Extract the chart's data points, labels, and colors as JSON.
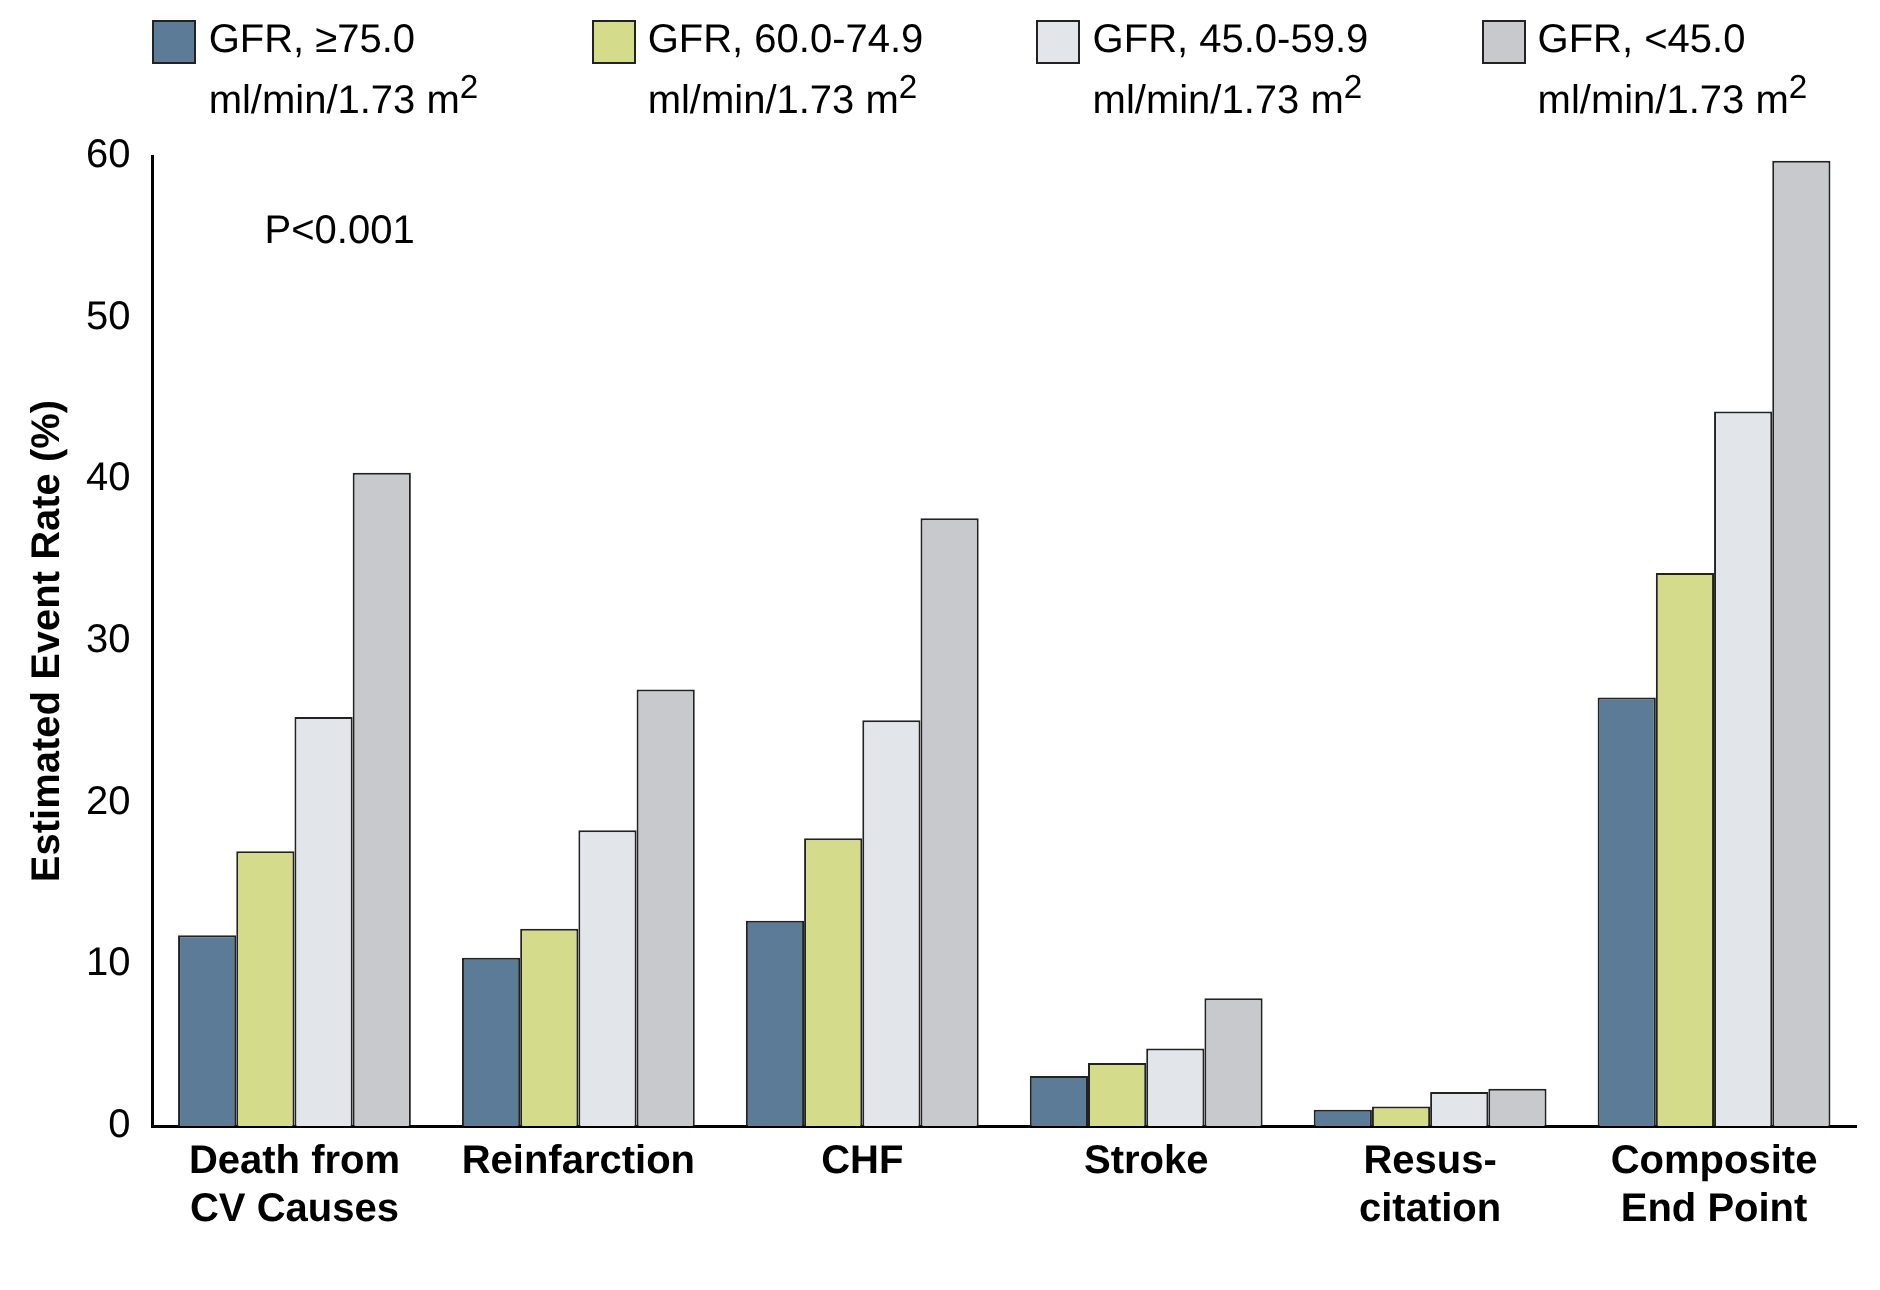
{
  "chart_data": {
    "type": "bar",
    "ylabel": "Estimated Event Rate (%)",
    "categories": [
      "Death from\nCV Causes",
      "Reinfarction",
      "CHF",
      "Stroke",
      "Resus-\ncitation",
      "Composite\nEnd Point"
    ],
    "series": [
      {
        "name": "GFR, ≥75.0 ml/min/1.73 m$^{2}$",
        "color": "#5b7b96",
        "values": [
          11.8,
          10.4,
          12.7,
          3.1,
          1.0,
          26.5
        ]
      },
      {
        "name": "GFR, 60.0-74.9 ml/min/1.73 m$^{2}$",
        "color": "#d4dc8c",
        "values": [
          17.0,
          12.2,
          17.8,
          3.9,
          1.2,
          34.2
        ]
      },
      {
        "name": "GFR, 45.0-59.9 ml/min/1.73 m$^{2}$",
        "color": "#e2e5ea",
        "values": [
          25.3,
          18.3,
          25.1,
          4.8,
          2.1,
          44.2
        ]
      },
      {
        "name": "GFR, <45.0 ml/min/1.73 m$^{2}$",
        "color": "#c8c9cc",
        "values": [
          40.4,
          27.0,
          37.6,
          7.9,
          2.3,
          59.7
        ]
      }
    ],
    "ylim": [
      0,
      60
    ],
    "yticks": [
      0,
      10,
      20,
      30,
      40,
      50,
      60
    ],
    "grid": false,
    "legend": "top",
    "annotations": [
      "P<0.001"
    ]
  }
}
